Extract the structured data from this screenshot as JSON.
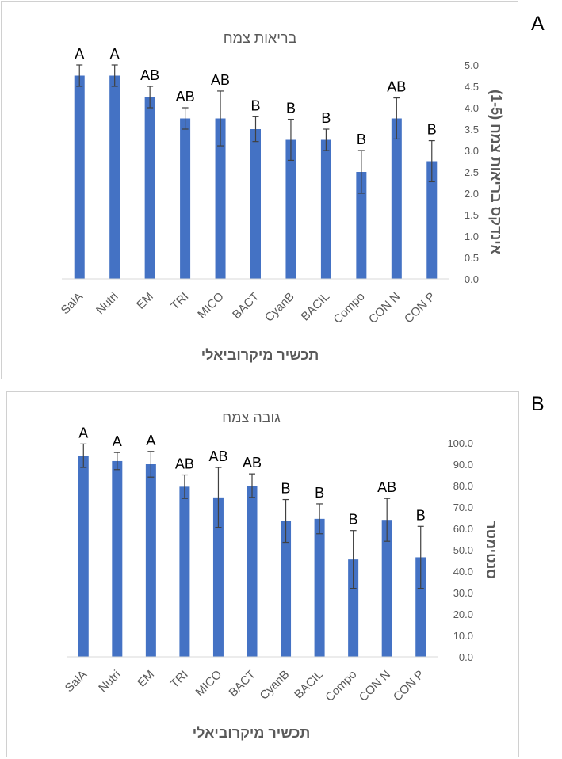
{
  "panels": [
    {
      "letter": "A",
      "chart_data": {
        "type": "bar",
        "title": "בריאות צמח",
        "xlabel": "תכשיר מיקרוביאלי",
        "ylabel": "אינדקס בריאות צמח (1-5)",
        "categories": [
          "SalA",
          "Nutri",
          "EM",
          "TRI",
          "MICO",
          "BACT",
          "CyanB",
          "BACIL",
          "Compo",
          "CON N",
          "CON P"
        ],
        "values": [
          4.75,
          4.75,
          4.25,
          3.75,
          3.75,
          3.5,
          3.25,
          3.25,
          2.5,
          3.75,
          2.75
        ],
        "errors": [
          0.25,
          0.25,
          0.25,
          0.25,
          0.64,
          0.29,
          0.48,
          0.25,
          0.5,
          0.48,
          0.48
        ],
        "significance_letters": [
          "A",
          "A",
          "AB",
          "AB",
          "AB",
          "B",
          "B",
          "B",
          "B",
          "AB",
          "B"
        ],
        "ylim": [
          0,
          5
        ],
        "yticks": [
          "0.0",
          "0.5",
          "1.0",
          "1.5",
          "2.0",
          "2.5",
          "3.0",
          "3.5",
          "4.0",
          "4.5",
          "5.0"
        ],
        "grid": false,
        "legend": "none",
        "bar_color": "#4472c4"
      }
    },
    {
      "letter": "B",
      "chart_data": {
        "type": "bar",
        "title": "גובה צמח",
        "xlabel": "תכשיר מיקרוביאלי",
        "ylabel": "סנטימטר",
        "categories": [
          "SalA",
          "Nutri",
          "EM",
          "TRI",
          "MICO",
          "BACT",
          "CyanB",
          "BACIL",
          "Compo",
          "CON N",
          "CON P"
        ],
        "values": [
          94,
          91.5,
          90,
          79.5,
          74.5,
          80,
          63.5,
          64.5,
          45.5,
          64,
          46.5
        ],
        "errors": [
          5.5,
          4,
          6,
          5.5,
          14,
          5.5,
          10,
          7,
          13.5,
          10,
          14.5
        ],
        "significance_letters": [
          "A",
          "A",
          "A",
          "AB",
          "AB",
          "AB",
          "B",
          "B",
          "B",
          "AB",
          "B"
        ],
        "ylim": [
          0,
          100
        ],
        "yticks": [
          "0.0",
          "10.0",
          "20.0",
          "30.0",
          "40.0",
          "50.0",
          "60.0",
          "70.0",
          "80.0",
          "90.0",
          "100.0"
        ],
        "grid": false,
        "legend": "none",
        "bar_color": "#4472c4"
      }
    }
  ]
}
